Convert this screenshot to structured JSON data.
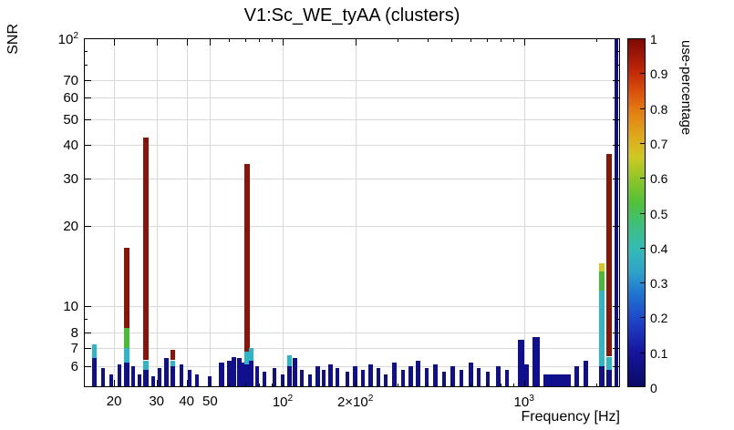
{
  "chart_data": {
    "type": "bar",
    "title": "V1:Sc_WE_tyAA (clusters)",
    "xlabel": "Frequency [Hz]",
    "ylabel": "SNR",
    "x_scale": "log",
    "y_scale": "log",
    "xlim": [
      15,
      2500
    ],
    "ylim": [
      5,
      100
    ],
    "grid": true,
    "x_ticks": [
      {
        "v": 20,
        "label": "20"
      },
      {
        "v": 30,
        "label": "30"
      },
      {
        "v": 40,
        "label": "40"
      },
      {
        "v": 50,
        "label": "50"
      },
      {
        "v": 100,
        "label": "10^2"
      },
      {
        "v": 200,
        "label": "2×10^2"
      },
      {
        "v": 1000,
        "label": "10^3"
      }
    ],
    "y_ticks": [
      {
        "v": 6,
        "label": "6"
      },
      {
        "v": 7,
        "label": "7"
      },
      {
        "v": 8,
        "label": "8"
      },
      {
        "v": 10,
        "label": "10"
      },
      {
        "v": 20,
        "label": "20"
      },
      {
        "v": 30,
        "label": "30"
      },
      {
        "v": 40,
        "label": "40"
      },
      {
        "v": 50,
        "label": "50"
      },
      {
        "v": 60,
        "label": "60"
      },
      {
        "v": 70,
        "label": "70"
      },
      {
        "v": 100,
        "label": "10^2"
      }
    ],
    "x_grid": [
      20,
      30,
      40,
      50,
      100,
      200,
      1000
    ],
    "y_grid": [
      6,
      7,
      8,
      10,
      20,
      30,
      40,
      50,
      60,
      70,
      100
    ],
    "palette": {
      "b": "#10108e",
      "c": "#2fb6c6",
      "g": "#47bb35",
      "y": "#d3c724",
      "o": "#e08214",
      "r": "#c63310",
      "d": "#8a1407"
    },
    "colorbar": {
      "label": "use-percentage",
      "min": 0,
      "max": 1,
      "tick_labels": [
        "0",
        "0.1",
        "0.2",
        "0.3",
        "0.4",
        "0.5",
        "0.6",
        "0.7",
        "0.8",
        "0.9",
        "1"
      ],
      "stops": [
        {
          "p": 0.0,
          "c": "#0a0a66"
        },
        {
          "p": 0.1,
          "c": "#16169e"
        },
        {
          "p": 0.18,
          "c": "#1d3fc4"
        },
        {
          "p": 0.26,
          "c": "#1e70d0"
        },
        {
          "p": 0.33,
          "c": "#2fa3c9"
        },
        {
          "p": 0.4,
          "c": "#35bcb4"
        },
        {
          "p": 0.47,
          "c": "#3fbf77"
        },
        {
          "p": 0.53,
          "c": "#52c139"
        },
        {
          "p": 0.6,
          "c": "#91c527"
        },
        {
          "p": 0.66,
          "c": "#cfc922"
        },
        {
          "p": 0.72,
          "c": "#dfa81b"
        },
        {
          "p": 0.79,
          "c": "#e37f12"
        },
        {
          "p": 0.85,
          "c": "#d9500c"
        },
        {
          "p": 0.91,
          "c": "#c02508"
        },
        {
          "p": 1.0,
          "c": "#7d0a04"
        }
      ]
    },
    "bars": [
      {
        "f": 16.5,
        "w": 5,
        "s": [
          [
            5,
            6.4,
            "b"
          ],
          [
            6.4,
            7.2,
            "c"
          ]
        ]
      },
      {
        "f": 18,
        "w": 4,
        "s": [
          [
            5,
            5.9,
            "b"
          ]
        ]
      },
      {
        "f": 19.5,
        "w": 4,
        "s": [
          [
            5,
            5.6,
            "b"
          ]
        ]
      },
      {
        "f": 21,
        "w": 4,
        "s": [
          [
            5,
            6.1,
            "b"
          ]
        ]
      },
      {
        "f": 22.5,
        "w": 6,
        "s": [
          [
            5,
            6.2,
            "b"
          ],
          [
            6.2,
            7.0,
            "c"
          ],
          [
            7.0,
            8.3,
            "g"
          ],
          [
            8.3,
            16.5,
            "d"
          ]
        ]
      },
      {
        "f": 24,
        "w": 4,
        "s": [
          [
            5,
            6.0,
            "b"
          ]
        ]
      },
      {
        "f": 25.5,
        "w": 4,
        "s": [
          [
            5,
            5.6,
            "b"
          ]
        ]
      },
      {
        "f": 27,
        "w": 6,
        "s": [
          [
            5,
            5.8,
            "b"
          ],
          [
            5.8,
            6.3,
            "c"
          ],
          [
            6.3,
            42.5,
            "d"
          ]
        ]
      },
      {
        "f": 29,
        "w": 4,
        "s": [
          [
            5,
            5.5,
            "b"
          ]
        ]
      },
      {
        "f": 31,
        "w": 4,
        "s": [
          [
            5,
            5.9,
            "b"
          ]
        ]
      },
      {
        "f": 33,
        "w": 5,
        "s": [
          [
            5,
            6.4,
            "b"
          ]
        ]
      },
      {
        "f": 35,
        "w": 5,
        "s": [
          [
            5,
            6.0,
            "b"
          ],
          [
            6.0,
            6.3,
            "c"
          ],
          [
            6.3,
            6.9,
            "d"
          ]
        ]
      },
      {
        "f": 38,
        "w": 4,
        "s": [
          [
            5,
            6.1,
            "b"
          ]
        ]
      },
      {
        "f": 41,
        "w": 4,
        "s": [
          [
            5,
            5.8,
            "b"
          ]
        ]
      },
      {
        "f": 44,
        "w": 4,
        "s": [
          [
            5,
            5.6,
            "b"
          ]
        ]
      },
      {
        "f": 50,
        "w": 4,
        "s": [
          [
            5,
            5.5,
            "b"
          ]
        ]
      },
      {
        "f": 56,
        "w": 6,
        "s": [
          [
            5,
            6.2,
            "b"
          ]
        ]
      },
      {
        "f": 60,
        "w": 5,
        "s": [
          [
            5,
            6.3,
            "b"
          ]
        ]
      },
      {
        "f": 63,
        "w": 5,
        "s": [
          [
            5,
            6.5,
            "b"
          ]
        ]
      },
      {
        "f": 66,
        "w": 5,
        "s": [
          [
            5,
            6.4,
            "b"
          ]
        ]
      },
      {
        "f": 68.5,
        "w": 4,
        "s": [
          [
            5,
            6.2,
            "b"
          ]
        ]
      },
      {
        "f": 71,
        "w": 6,
        "s": [
          [
            5,
            6.1,
            "b"
          ],
          [
            6.1,
            6.8,
            "c"
          ],
          [
            6.8,
            34,
            "d"
          ]
        ]
      },
      {
        "f": 74,
        "w": 5,
        "s": [
          [
            5,
            6.3,
            "b"
          ],
          [
            6.3,
            7.0,
            "c"
          ]
        ]
      },
      {
        "f": 78,
        "w": 4,
        "s": [
          [
            5,
            6.0,
            "b"
          ]
        ]
      },
      {
        "f": 84,
        "w": 4,
        "s": [
          [
            5,
            5.7,
            "b"
          ]
        ]
      },
      {
        "f": 92,
        "w": 4,
        "s": [
          [
            5,
            5.9,
            "b"
          ]
        ]
      },
      {
        "f": 100,
        "w": 4,
        "s": [
          [
            5,
            5.6,
            "b"
          ]
        ]
      },
      {
        "f": 107,
        "w": 5,
        "s": [
          [
            5,
            6.0,
            "b"
          ],
          [
            6.0,
            6.6,
            "c"
          ]
        ]
      },
      {
        "f": 112,
        "w": 5,
        "s": [
          [
            5,
            6.4,
            "b"
          ]
        ]
      },
      {
        "f": 120,
        "w": 4,
        "s": [
          [
            5,
            5.8,
            "b"
          ]
        ]
      },
      {
        "f": 130,
        "w": 4,
        "s": [
          [
            5,
            5.6,
            "b"
          ]
        ]
      },
      {
        "f": 140,
        "w": 5,
        "s": [
          [
            5,
            6.0,
            "b"
          ]
        ]
      },
      {
        "f": 148,
        "w": 4,
        "s": [
          [
            5,
            5.8,
            "b"
          ]
        ]
      },
      {
        "f": 158,
        "w": 5,
        "s": [
          [
            5,
            6.1,
            "b"
          ]
        ]
      },
      {
        "f": 168,
        "w": 4,
        "s": [
          [
            5,
            5.9,
            "b"
          ]
        ]
      },
      {
        "f": 185,
        "w": 4,
        "s": [
          [
            5,
            5.7,
            "b"
          ]
        ]
      },
      {
        "f": 200,
        "w": 5,
        "s": [
          [
            5,
            6.0,
            "b"
          ]
        ]
      },
      {
        "f": 215,
        "w": 4,
        "s": [
          [
            5,
            5.8,
            "b"
          ]
        ]
      },
      {
        "f": 232,
        "w": 5,
        "s": [
          [
            5,
            6.1,
            "b"
          ]
        ]
      },
      {
        "f": 250,
        "w": 4,
        "s": [
          [
            5,
            5.9,
            "b"
          ]
        ]
      },
      {
        "f": 268,
        "w": 4,
        "s": [
          [
            5,
            5.6,
            "b"
          ]
        ]
      },
      {
        "f": 290,
        "w": 5,
        "s": [
          [
            5,
            6.2,
            "b"
          ]
        ]
      },
      {
        "f": 315,
        "w": 4,
        "s": [
          [
            5,
            5.8,
            "b"
          ]
        ]
      },
      {
        "f": 340,
        "w": 5,
        "s": [
          [
            5,
            6.0,
            "b"
          ]
        ]
      },
      {
        "f": 365,
        "w": 5,
        "s": [
          [
            5,
            6.3,
            "b"
          ]
        ]
      },
      {
        "f": 395,
        "w": 4,
        "s": [
          [
            5,
            5.9,
            "b"
          ]
        ]
      },
      {
        "f": 430,
        "w": 5,
        "s": [
          [
            5,
            6.1,
            "b"
          ]
        ]
      },
      {
        "f": 465,
        "w": 4,
        "s": [
          [
            5,
            5.7,
            "b"
          ]
        ]
      },
      {
        "f": 505,
        "w": 5,
        "s": [
          [
            5,
            6.0,
            "b"
          ]
        ]
      },
      {
        "f": 550,
        "w": 4,
        "s": [
          [
            5,
            5.8,
            "b"
          ]
        ]
      },
      {
        "f": 600,
        "w": 5,
        "s": [
          [
            5,
            6.2,
            "b"
          ]
        ]
      },
      {
        "f": 650,
        "w": 4,
        "s": [
          [
            5,
            5.9,
            "b"
          ]
        ]
      },
      {
        "f": 710,
        "w": 4,
        "s": [
          [
            5,
            5.7,
            "b"
          ]
        ]
      },
      {
        "f": 780,
        "w": 5,
        "s": [
          [
            5,
            6.0,
            "b"
          ]
        ]
      },
      {
        "f": 850,
        "w": 4,
        "s": [
          [
            5,
            5.8,
            "b"
          ]
        ]
      },
      {
        "f": 970,
        "w": 7,
        "s": [
          [
            5,
            7.5,
            "b"
          ]
        ]
      },
      {
        "f": 1020,
        "w": 5,
        "s": [
          [
            5,
            6.1,
            "b"
          ]
        ]
      },
      {
        "f": 1120,
        "w": 8,
        "s": [
          [
            5,
            7.7,
            "b"
          ]
        ]
      },
      {
        "f": 1370,
        "w": 30,
        "s": [
          [
            5,
            5.6,
            "b"
          ]
        ]
      },
      {
        "f": 1650,
        "w": 5,
        "s": [
          [
            5,
            6.0,
            "b"
          ]
        ]
      },
      {
        "f": 1800,
        "w": 5,
        "s": [
          [
            5,
            6.3,
            "b"
          ]
        ]
      },
      {
        "f": 2100,
        "w": 6,
        "s": [
          [
            5,
            6.0,
            "b"
          ],
          [
            6.0,
            11.5,
            "c"
          ],
          [
            11.5,
            13.5,
            "g"
          ],
          [
            13.5,
            14.5,
            "y"
          ]
        ]
      },
      {
        "f": 2250,
        "w": 6,
        "s": [
          [
            5,
            5.8,
            "b"
          ],
          [
            5.8,
            6.5,
            "c"
          ],
          [
            6.5,
            37,
            "d"
          ]
        ]
      },
      {
        "f": 2420,
        "w": 4,
        "s": [
          [
            5,
            100,
            "b"
          ]
        ]
      }
    ]
  }
}
